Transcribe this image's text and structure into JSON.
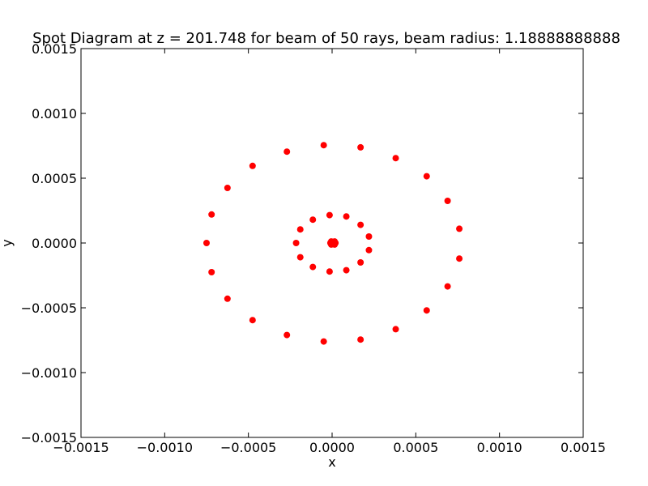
{
  "chart_data": {
    "type": "scatter",
    "title": "Spot Diagram at z = 201.748 for beam of 50 rays, beam radius: 1.18888888888",
    "xlabel": "x",
    "ylabel": "y",
    "xlim": [
      -0.0015,
      0.0015
    ],
    "ylim": [
      -0.0015,
      0.0015
    ],
    "x_ticks": [
      -0.0015,
      -0.001,
      -0.0005,
      0.0,
      0.0005,
      0.001,
      0.0015
    ],
    "x_tick_labels": [
      "−0.0015",
      "−0.0010",
      "−0.0005",
      "0.0000",
      "0.0005",
      "0.0010",
      "0.0015"
    ],
    "y_ticks": [
      -0.0015,
      -0.001,
      -0.0005,
      0.0,
      0.0005,
      0.001,
      0.0015
    ],
    "y_tick_labels": [
      "−0.0015",
      "−0.0010",
      "−0.0005",
      "0.0000",
      "0.0005",
      "0.0010",
      "0.0015"
    ],
    "grid": false,
    "marker_color": "#ff0000",
    "series": [
      {
        "points": [
          [
            -5e-05,
            0.000755
          ],
          [
            0.00017,
            0.000738
          ],
          [
            0.00038,
            0.000655
          ],
          [
            0.000565,
            0.000515
          ],
          [
            0.00069,
            0.000325
          ],
          [
            0.00076,
            0.00011
          ],
          [
            0.00076,
            -0.00012
          ],
          [
            0.00069,
            -0.000335
          ],
          [
            0.000565,
            -0.00052
          ],
          [
            0.00038,
            -0.000665
          ],
          [
            0.00017,
            -0.000745
          ],
          [
            -5e-05,
            -0.00076
          ],
          [
            -0.00027,
            -0.00071
          ],
          [
            -0.000475,
            -0.000595
          ],
          [
            -0.000625,
            -0.00043
          ],
          [
            -0.00072,
            -0.000225
          ],
          [
            -0.00075,
            0.0
          ],
          [
            -0.00072,
            0.00022
          ],
          [
            -0.000625,
            0.000425
          ],
          [
            -0.000475,
            0.000595
          ],
          [
            -0.00027,
            0.000705
          ],
          [
            -1.5e-05,
            0.000215
          ],
          [
            8.5e-05,
            0.000205
          ],
          [
            0.00017,
            0.00014
          ],
          [
            0.00022,
            5e-05
          ],
          [
            0.00022,
            -5.5e-05
          ],
          [
            0.00017,
            -0.00015
          ],
          [
            8.5e-05,
            -0.00021
          ],
          [
            -1.5e-05,
            -0.00022
          ],
          [
            -0.000115,
            -0.000185
          ],
          [
            -0.00019,
            -0.00011
          ],
          [
            -0.000215,
            0.0
          ],
          [
            -0.00019,
            0.000105
          ],
          [
            -0.000115,
            0.00018
          ],
          [
            -1e-05,
            0.0
          ],
          [
            0.0,
            0.0
          ],
          [
            1e-05,
            0.0
          ],
          [
            2e-05,
            0.0
          ],
          [
            -5e-06,
            1.2e-05
          ],
          [
            1.5e-05,
            1.2e-05
          ],
          [
            -5e-06,
            -1.2e-05
          ],
          [
            1.5e-05,
            -1.2e-05
          ],
          [
            5e-06,
            0.0
          ]
        ]
      }
    ]
  }
}
